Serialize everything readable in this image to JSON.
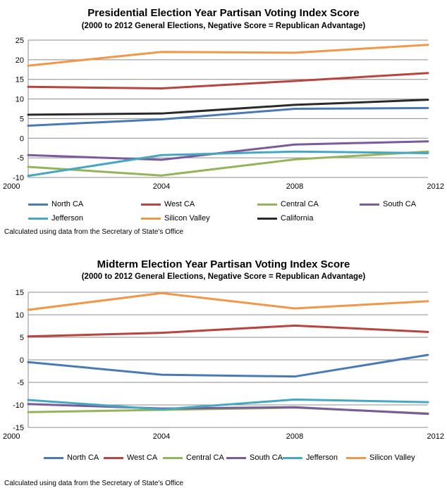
{
  "chart_data": [
    {
      "type": "line",
      "title": "Presidential Election Year Partisan Voting Index Score",
      "subtitle": "(2000 to 2012 General Elections, Negative Score = Republican  Advantage)",
      "x": [
        2000,
        2004,
        2008,
        2012
      ],
      "ylim": [
        -10,
        25
      ],
      "yticks": [
        -10,
        -5,
        0,
        5,
        10,
        15,
        20,
        25
      ],
      "grid": true,
      "legend_position": "bottom",
      "series": [
        {
          "name": "North CA",
          "color": "#4a7ab5",
          "values": [
            3.2,
            4.8,
            7.5,
            7.7
          ]
        },
        {
          "name": "West CA",
          "color": "#b8443f",
          "values": [
            13.1,
            12.7,
            14.6,
            16.6
          ]
        },
        {
          "name": "Central CA",
          "color": "#93b45a",
          "values": [
            -7.3,
            -9.5,
            -5.4,
            -3.4
          ]
        },
        {
          "name": "South CA",
          "color": "#7a5a9a",
          "values": [
            -4.3,
            -5.5,
            -1.6,
            -0.8
          ]
        },
        {
          "name": "Jefferson",
          "color": "#46a7c2",
          "values": [
            -9.6,
            -4.3,
            -3.4,
            -3.8
          ]
        },
        {
          "name": "Silicon Valley",
          "color": "#f0974a",
          "values": [
            18.5,
            22.0,
            21.8,
            23.8
          ]
        },
        {
          "name": "California",
          "color": "#2a2a2a",
          "values": [
            6.0,
            6.3,
            8.5,
            9.8
          ]
        }
      ],
      "note": "Calculated using data from the Secretary of State's Office"
    },
    {
      "type": "line",
      "title": "Midterm Election Year Partisan Voting Index Score",
      "subtitle": "(2000 to 2012 General Elections, Negative Score = Republican  Advantage)",
      "x": [
        2000,
        2004,
        2008,
        2012
      ],
      "ylim": [
        -15,
        15
      ],
      "yticks": [
        -15,
        -10,
        -5,
        0,
        5,
        10,
        15
      ],
      "grid": true,
      "legend_position": "bottom",
      "series": [
        {
          "name": "North CA",
          "color": "#4a7ab5",
          "values": [
            -0.5,
            -3.3,
            -3.7,
            1.1
          ]
        },
        {
          "name": "West CA",
          "color": "#b8443f",
          "values": [
            5.2,
            6.0,
            7.6,
            6.2
          ]
        },
        {
          "name": "Central CA",
          "color": "#93b45a",
          "values": [
            -11.6,
            -11.1,
            -10.6,
            -11.9
          ]
        },
        {
          "name": "South CA",
          "color": "#7a5a9a",
          "values": [
            -9.8,
            -10.8,
            -10.5,
            -12.0
          ]
        },
        {
          "name": "Jefferson",
          "color": "#46a7c2",
          "values": [
            -8.9,
            -11.0,
            -8.8,
            -9.4
          ]
        },
        {
          "name": "Silicon Valley",
          "color": "#f0974a",
          "values": [
            11.1,
            14.8,
            11.4,
            13.0
          ]
        }
      ],
      "note": "Calculated using data from the Secretary of State's Office"
    }
  ]
}
